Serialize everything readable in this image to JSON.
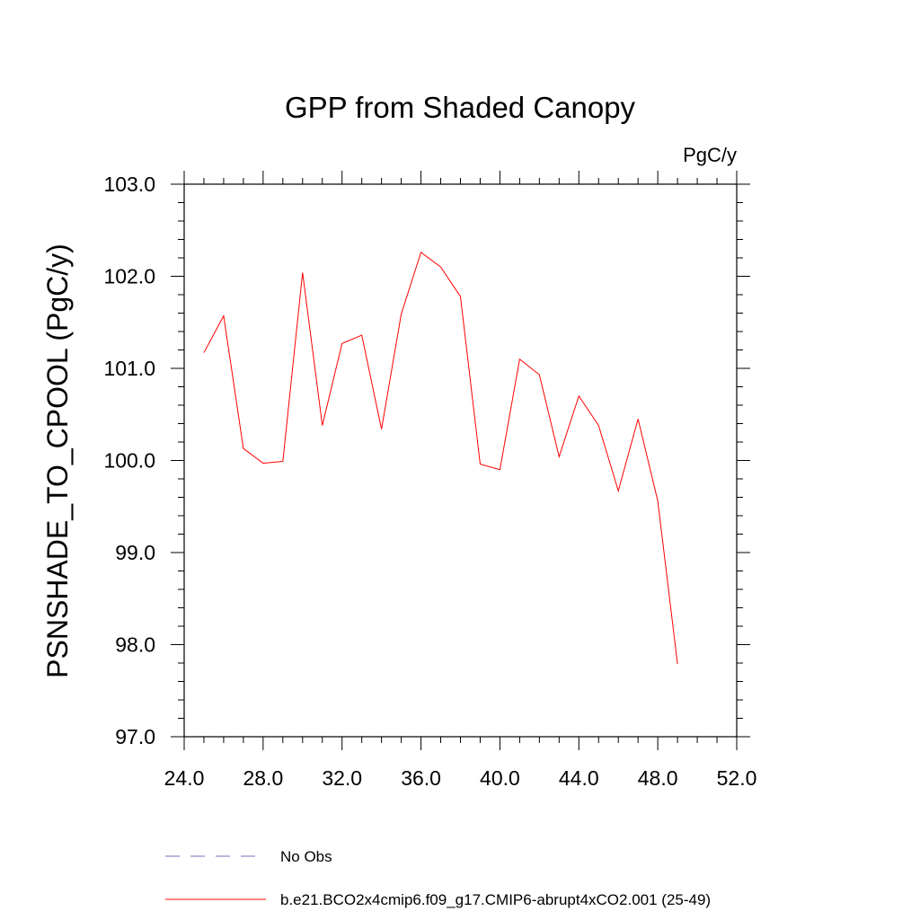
{
  "chart_data": {
    "type": "line",
    "title": "GPP from Shaded Canopy",
    "units": "PgC/y",
    "ylabel": "PSNSHADE_TO_CPOOL  (PgC/y)",
    "xlabel": "",
    "xlim": [
      24,
      52
    ],
    "ylim": [
      97,
      103
    ],
    "x_ticks": [
      24,
      28,
      32,
      36,
      40,
      44,
      48,
      52
    ],
    "x_tick_labels": [
      "24.0",
      "28.0",
      "32.0",
      "36.0",
      "40.0",
      "44.0",
      "48.0",
      "52.0"
    ],
    "y_ticks": [
      97,
      98,
      99,
      100,
      101,
      102,
      103
    ],
    "y_tick_labels": [
      "97.0",
      "98.0",
      "99.0",
      "100.0",
      "101.0",
      "102.0",
      "103.0"
    ],
    "series": [
      {
        "name": "b.e21.BCO2x4cmip6.f09_g17.CMIP6-abrupt4xCO2.001 (25-49)",
        "color": "#ff0000",
        "x": [
          25,
          26,
          27,
          28,
          29,
          30,
          31,
          32,
          33,
          34,
          35,
          36,
          37,
          38,
          39,
          40,
          41,
          42,
          43,
          44,
          45,
          46,
          47,
          48,
          49
        ],
        "values": [
          101.17,
          101.57,
          100.13,
          99.97,
          99.99,
          102.04,
          100.38,
          101.27,
          101.36,
          100.34,
          101.59,
          102.26,
          102.1,
          101.78,
          99.96,
          99.9,
          101.1,
          100.93,
          100.04,
          100.7,
          100.38,
          99.67,
          100.45,
          99.56,
          97.79
        ]
      }
    ],
    "legend": {
      "placement": "bottom",
      "entries": [
        {
          "label": "No Obs",
          "color": "#6f6fbf",
          "style": "dashed"
        },
        {
          "label": "b.e21.BCO2x4cmip6.f09_g17.CMIP6-abrupt4xCO2.001 (25-49)",
          "color": "#ff0000",
          "style": "solid"
        }
      ]
    }
  }
}
